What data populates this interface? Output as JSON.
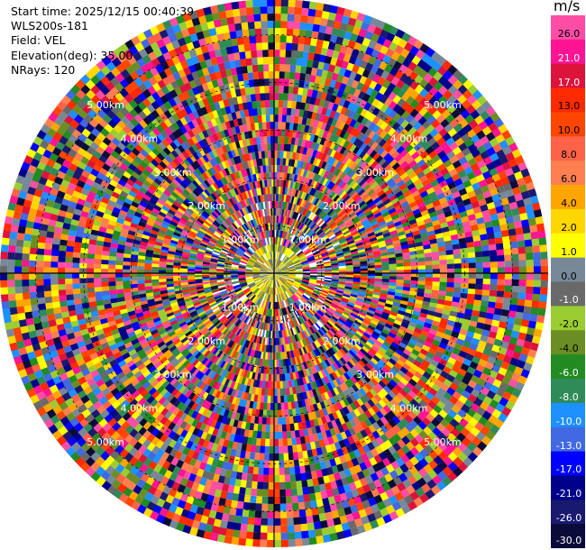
{
  "info": {
    "start_time": "Start time: 2025/12/15 00:40:39",
    "instrument": "WLS200s-181",
    "field": "Field: VEL",
    "elevation": "Elevation(deg): 35.00",
    "nrays": "NRays: 120"
  },
  "colorbar": {
    "unit": "m/s",
    "levels": [
      "26.0",
      "21.0",
      "17.0",
      "13.0",
      "10.0",
      "8.0",
      "6.0",
      "4.0",
      "2.0",
      "1.0",
      "0.0",
      "-1.0",
      "-2.0",
      "-4.0",
      "-6.0",
      "-8.0",
      "-10.0",
      "-13.0",
      "-17.0",
      "-21.0",
      "-26.0",
      "-30.0"
    ],
    "colors": [
      "#ff4da6",
      "#ff1493",
      "#dc143c",
      "#ff2a00",
      "#ff4500",
      "#ff6347",
      "#ff7f50",
      "#ffa500",
      "#ffd700",
      "#ffff00",
      "#778899",
      "#696969",
      "#9acd32",
      "#6b8e23",
      "#228b22",
      "#2e8b57",
      "#1e90ff",
      "#4169e1",
      "#0000ff",
      "#00008b",
      "#191970",
      "#0b0b3a"
    ]
  },
  "chart_data": {
    "type": "heatmap",
    "title": "",
    "field": "VEL",
    "elevation_deg": 35.0,
    "n_rays": 120,
    "range_rings": [
      {
        "label": "1.00km",
        "km": 1
      },
      {
        "label": "2.00km",
        "km": 2
      },
      {
        "label": "3.00km",
        "km": 3
      },
      {
        "label": "4.00km",
        "km": 4
      },
      {
        "label": "5.00km",
        "km": 5
      }
    ],
    "max_range_km": 5.75,
    "value_range": [
      -30,
      30
    ],
    "unit": "m/s"
  }
}
